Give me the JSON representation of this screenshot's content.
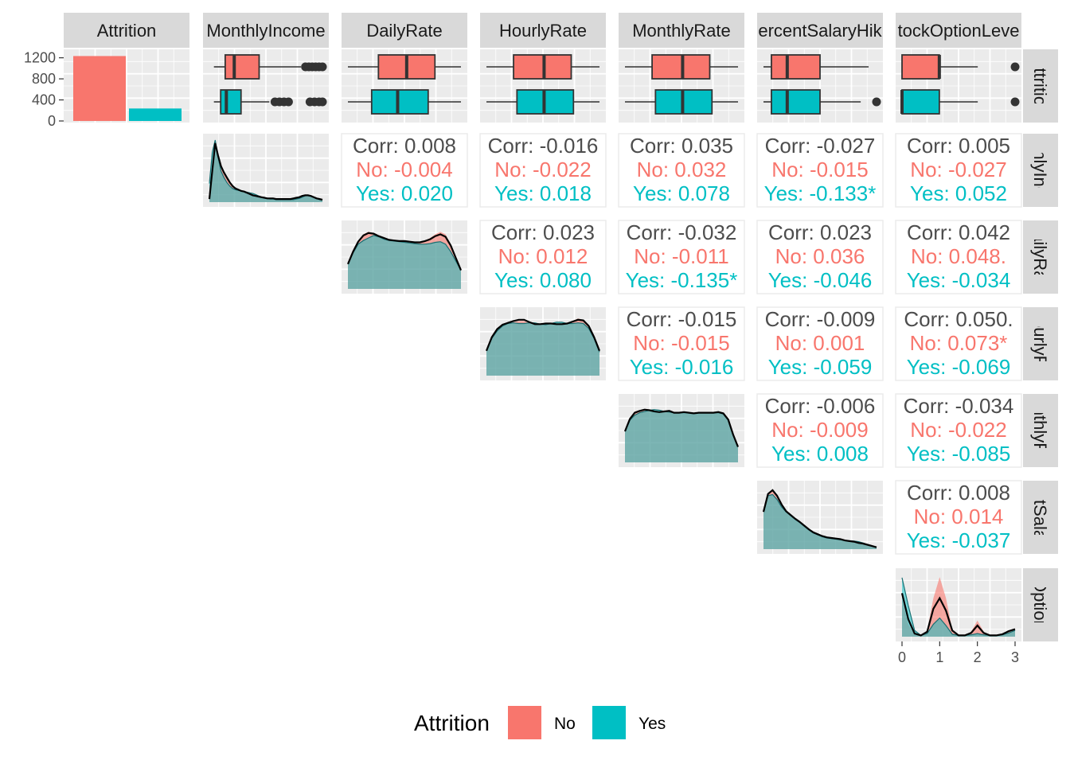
{
  "colors": {
    "No": "#F8766D",
    "Yes": "#00BFC4",
    "panel": "#EBEBEB",
    "strip": "#D9D9D9",
    "corr": "#4D4D4D"
  },
  "chart_data": {
    "type": "scatterplot-matrix",
    "variables": [
      "Attrition",
      "MonthlyIncome",
      "DailyRate",
      "HourlyRate",
      "MonthlyRate",
      "PercentSalaryHike",
      "StockOptionLevel"
    ],
    "top_strip_labels": [
      "Attrition",
      "MonthlyIncome",
      "DailyRate",
      "HourlyRate",
      "MonthlyRate",
      "ercentSalaryHik",
      "tockOptionLeve"
    ],
    "right_strip_labels": [
      "Attrition",
      "nthlyInco",
      "DailyRate",
      "HourlyRat",
      "onthlyRa",
      "entSalary",
      "kOptionL"
    ],
    "attrition_counts": {
      "categories": [
        "No",
        "Yes"
      ],
      "values": [
        1233,
        237
      ],
      "yticks": [
        "1200",
        "800",
        "400",
        "0"
      ],
      "ylim": [
        0,
        1300
      ]
    },
    "stock_option_xticks": [
      "0",
      "1",
      "2",
      "3"
    ],
    "legend": {
      "title": "Attrition",
      "items": [
        "No",
        "Yes"
      ]
    },
    "boxplots": [
      {
        "variable": "MonthlyIncome",
        "No": {
          "lw": 0.04,
          "q1": 0.14,
          "med": 0.22,
          "q3": 0.44,
          "uw": 0.81,
          "out": [
            0.85,
            0.88,
            0.91,
            0.94,
            0.97,
            1.0
          ]
        },
        "Yes": {
          "lw": 0.04,
          "q1": 0.1,
          "med": 0.15,
          "q3": 0.28,
          "uw": 0.53,
          "out": [
            0.58,
            0.62,
            0.66,
            0.7,
            0.89,
            0.93,
            0.97,
            1.0
          ]
        }
      },
      {
        "variable": "DailyRate",
        "No": {
          "lw": 0.0,
          "q1": 0.27,
          "med": 0.52,
          "q3": 0.77,
          "uw": 1.0,
          "out": []
        },
        "Yes": {
          "lw": 0.0,
          "q1": 0.21,
          "med": 0.44,
          "q3": 0.71,
          "uw": 1.0,
          "out": []
        }
      },
      {
        "variable": "HourlyRate",
        "No": {
          "lw": 0.0,
          "q1": 0.24,
          "med": 0.51,
          "q3": 0.75,
          "uw": 1.0,
          "out": []
        },
        "Yes": {
          "lw": 0.0,
          "q1": 0.27,
          "med": 0.51,
          "q3": 0.77,
          "uw": 1.0,
          "out": []
        }
      },
      {
        "variable": "MonthlyRate",
        "No": {
          "lw": 0.0,
          "q1": 0.24,
          "med": 0.51,
          "q3": 0.75,
          "uw": 1.0,
          "out": []
        },
        "Yes": {
          "lw": 0.0,
          "q1": 0.27,
          "med": 0.51,
          "q3": 0.77,
          "uw": 1.0,
          "out": []
        }
      },
      {
        "variable": "PercentSalaryHike",
        "No": {
          "lw": 0.0,
          "q1": 0.07,
          "med": 0.21,
          "q3": 0.5,
          "uw": 0.93,
          "out": []
        },
        "Yes": {
          "lw": 0.0,
          "q1": 0.07,
          "med": 0.21,
          "q3": 0.5,
          "uw": 0.86,
          "out": [
            1.0
          ]
        }
      },
      {
        "variable": "StockOptionLevel",
        "No": {
          "lw": 0.0,
          "q1": 0.0,
          "med": 0.33,
          "q3": 0.33,
          "uw": 0.67,
          "out": [
            1.0
          ]
        },
        "Yes": {
          "lw": 0.0,
          "q1": 0.0,
          "med": 0.0,
          "q3": 0.33,
          "uw": 0.67,
          "out": [
            1.0
          ]
        }
      }
    ],
    "densities": [
      {
        "variable": "MonthlyIncome",
        "No": [
          0.05,
          0.45,
          0.92,
          0.75,
          0.6,
          0.5,
          0.42,
          0.33,
          0.26,
          0.22,
          0.2,
          0.18,
          0.17,
          0.15,
          0.13,
          0.11,
          0.1,
          0.09,
          0.08,
          0.07,
          0.06,
          0.06,
          0.06,
          0.05,
          0.05,
          0.05,
          0.05,
          0.05,
          0.05,
          0.06,
          0.07,
          0.08,
          0.1,
          0.11,
          0.11,
          0.1,
          0.08,
          0.06,
          0.05,
          0.04
        ],
        "Yes": [
          0.3,
          0.8,
          1.0,
          0.72,
          0.5,
          0.4,
          0.32,
          0.26,
          0.22,
          0.2,
          0.19,
          0.18,
          0.17,
          0.16,
          0.15,
          0.14,
          0.12,
          0.1,
          0.08,
          0.07,
          0.06,
          0.05,
          0.05,
          0.04,
          0.04,
          0.04,
          0.04,
          0.04,
          0.04,
          0.04,
          0.05,
          0.06,
          0.08,
          0.1,
          0.11,
          0.1,
          0.08,
          0.06,
          0.04,
          0.03
        ],
        "overall": [
          0.05,
          0.5,
          0.95,
          0.75,
          0.58,
          0.48,
          0.4,
          0.32,
          0.26,
          0.22,
          0.2,
          0.18,
          0.17,
          0.15,
          0.13,
          0.11,
          0.1,
          0.09,
          0.08,
          0.07,
          0.06,
          0.06,
          0.06,
          0.05,
          0.05,
          0.05,
          0.05,
          0.05,
          0.05,
          0.06,
          0.07,
          0.08,
          0.1,
          0.11,
          0.11,
          0.1,
          0.08,
          0.06,
          0.05,
          0.04
        ]
      },
      {
        "variable": "DailyRate",
        "No": [
          0.4,
          0.6,
          0.78,
          0.88,
          0.92,
          0.9,
          0.86,
          0.82,
          0.8,
          0.78,
          0.78,
          0.77,
          0.76,
          0.75,
          0.76,
          0.78,
          0.82,
          0.88,
          0.92,
          0.88,
          0.72,
          0.5,
          0.3
        ],
        "Yes": [
          0.4,
          0.58,
          0.72,
          0.78,
          0.82,
          0.86,
          0.84,
          0.8,
          0.78,
          0.77,
          0.76,
          0.75,
          0.74,
          0.73,
          0.72,
          0.72,
          0.73,
          0.75,
          0.76,
          0.72,
          0.6,
          0.45,
          0.3
        ],
        "overall": [
          0.4,
          0.6,
          0.76,
          0.86,
          0.9,
          0.89,
          0.85,
          0.82,
          0.79,
          0.78,
          0.77,
          0.77,
          0.76,
          0.75,
          0.75,
          0.77,
          0.8,
          0.85,
          0.88,
          0.84,
          0.7,
          0.5,
          0.3
        ]
      },
      {
        "variable": "HourlyRate",
        "No": [
          0.4,
          0.62,
          0.76,
          0.82,
          0.84,
          0.86,
          0.88,
          0.88,
          0.85,
          0.82,
          0.82,
          0.84,
          0.84,
          0.82,
          0.82,
          0.84,
          0.88,
          0.92,
          0.9,
          0.8,
          0.62,
          0.4
        ],
        "Yes": [
          0.4,
          0.6,
          0.72,
          0.8,
          0.84,
          0.85,
          0.84,
          0.84,
          0.85,
          0.85,
          0.83,
          0.82,
          0.84,
          0.86,
          0.86,
          0.84,
          0.84,
          0.85,
          0.84,
          0.76,
          0.6,
          0.38
        ],
        "overall": [
          0.4,
          0.62,
          0.75,
          0.82,
          0.85,
          0.88,
          0.9,
          0.9,
          0.86,
          0.83,
          0.83,
          0.84,
          0.84,
          0.83,
          0.83,
          0.84,
          0.87,
          0.9,
          0.89,
          0.8,
          0.62,
          0.4
        ]
      },
      {
        "variable": "MonthlyRate",
        "No": [
          0.5,
          0.72,
          0.82,
          0.84,
          0.86,
          0.83,
          0.8,
          0.8,
          0.82,
          0.84,
          0.8,
          0.8,
          0.81,
          0.8,
          0.79,
          0.8,
          0.8,
          0.8,
          0.81,
          0.82,
          0.8,
          0.7,
          0.45,
          0.25
        ],
        "Yes": [
          0.5,
          0.68,
          0.76,
          0.8,
          0.82,
          0.84,
          0.85,
          0.84,
          0.82,
          0.81,
          0.8,
          0.8,
          0.8,
          0.8,
          0.79,
          0.8,
          0.8,
          0.8,
          0.8,
          0.8,
          0.78,
          0.68,
          0.45,
          0.25
        ],
        "overall": [
          0.5,
          0.7,
          0.8,
          0.83,
          0.85,
          0.84,
          0.82,
          0.81,
          0.82,
          0.83,
          0.8,
          0.8,
          0.81,
          0.8,
          0.79,
          0.8,
          0.8,
          0.8,
          0.8,
          0.81,
          0.79,
          0.69,
          0.45,
          0.25
        ]
      },
      {
        "variable": "PercentSalaryHike",
        "No": [
          0.6,
          0.9,
          0.96,
          0.88,
          0.74,
          0.62,
          0.55,
          0.5,
          0.44,
          0.38,
          0.32,
          0.28,
          0.25,
          0.22,
          0.2,
          0.19,
          0.18,
          0.16,
          0.14,
          0.13,
          0.12,
          0.1,
          0.09,
          0.07,
          0.05,
          0.03
        ],
        "Yes": [
          0.62,
          0.86,
          0.88,
          0.8,
          0.68,
          0.6,
          0.54,
          0.48,
          0.43,
          0.37,
          0.31,
          0.26,
          0.23,
          0.2,
          0.18,
          0.17,
          0.16,
          0.15,
          0.14,
          0.13,
          0.13,
          0.12,
          0.1,
          0.07,
          0.05,
          0.03
        ],
        "overall": [
          0.6,
          0.89,
          0.95,
          0.86,
          0.72,
          0.61,
          0.55,
          0.49,
          0.44,
          0.38,
          0.32,
          0.27,
          0.24,
          0.21,
          0.19,
          0.18,
          0.17,
          0.16,
          0.14,
          0.13,
          0.12,
          0.1,
          0.09,
          0.07,
          0.05,
          0.03
        ]
      },
      {
        "variable": "StockOptionLevel",
        "No": [
          0.6,
          0.2,
          0.03,
          0.02,
          0.1,
          0.62,
          0.96,
          0.62,
          0.12,
          0.02,
          0.02,
          0.08,
          0.26,
          0.08,
          0.02,
          0.02,
          0.04,
          0.1,
          0.12
        ],
        "Yes": [
          0.95,
          0.5,
          0.1,
          0.02,
          0.05,
          0.2,
          0.3,
          0.18,
          0.04,
          0.02,
          0.02,
          0.03,
          0.05,
          0.03,
          0.02,
          0.02,
          0.03,
          0.06,
          0.1
        ],
        "overall": [
          0.7,
          0.28,
          0.05,
          0.02,
          0.08,
          0.45,
          0.62,
          0.42,
          0.1,
          0.02,
          0.02,
          0.06,
          0.18,
          0.06,
          0.02,
          0.02,
          0.04,
          0.09,
          0.12
        ]
      }
    ],
    "correlations": [
      {
        "row": 1,
        "col": 2,
        "corr": "Corr: 0.008",
        "no": "No: -0.004",
        "yes": "Yes: 0.020"
      },
      {
        "row": 1,
        "col": 3,
        "corr": "Corr: -0.016",
        "no": "No: -0.022",
        "yes": "Yes: 0.018"
      },
      {
        "row": 1,
        "col": 4,
        "corr": "Corr: 0.035",
        "no": "No: 0.032",
        "yes": "Yes: 0.078"
      },
      {
        "row": 1,
        "col": 5,
        "corr": "Corr: -0.027",
        "no": "No: -0.015",
        "yes": "Yes: -0.133*"
      },
      {
        "row": 1,
        "col": 6,
        "corr": "Corr: 0.005",
        "no": "No: -0.027",
        "yes": "Yes: 0.052"
      },
      {
        "row": 2,
        "col": 3,
        "corr": "Corr: 0.023",
        "no": "No: 0.012",
        "yes": "Yes: 0.080"
      },
      {
        "row": 2,
        "col": 4,
        "corr": "Corr: -0.032",
        "no": "No: -0.011",
        "yes": "Yes: -0.135*"
      },
      {
        "row": 2,
        "col": 5,
        "corr": "Corr: 0.023",
        "no": "No: 0.036",
        "yes": "Yes: -0.046"
      },
      {
        "row": 2,
        "col": 6,
        "corr": "Corr: 0.042",
        "no": "No: 0.048.",
        "yes": "Yes: -0.034"
      },
      {
        "row": 3,
        "col": 4,
        "corr": "Corr: -0.015",
        "no": "No: -0.015",
        "yes": "Yes: -0.016"
      },
      {
        "row": 3,
        "col": 5,
        "corr": "Corr: -0.009",
        "no": "No: 0.001",
        "yes": "Yes: -0.059"
      },
      {
        "row": 3,
        "col": 6,
        "corr": "Corr: 0.050.",
        "no": "No: 0.073*",
        "yes": "Yes: -0.069"
      },
      {
        "row": 4,
        "col": 5,
        "corr": "Corr: -0.006",
        "no": "No: -0.009",
        "yes": "Yes: 0.008"
      },
      {
        "row": 4,
        "col": 6,
        "corr": "Corr: -0.034",
        "no": "No: -0.022",
        "yes": "Yes: -0.085"
      },
      {
        "row": 5,
        "col": 6,
        "corr": "Corr: 0.008",
        "no": "No: 0.014",
        "yes": "Yes: -0.037"
      }
    ]
  }
}
